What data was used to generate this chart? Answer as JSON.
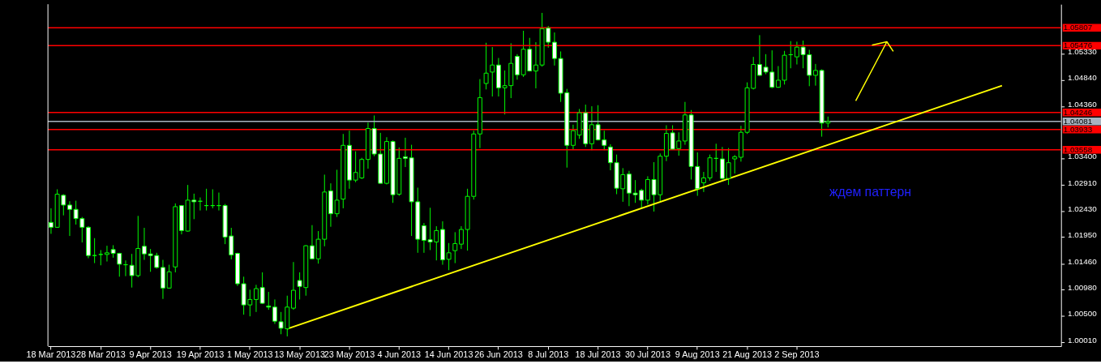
{
  "chart_data": {
    "type": "candlestick",
    "categories": [
      "18 Mar 2013",
      null,
      null,
      null,
      null,
      null,
      null,
      null,
      "28 Mar 2013",
      null,
      null,
      null,
      null,
      null,
      null,
      null,
      "9 Apr 2013",
      null,
      null,
      null,
      null,
      null,
      null,
      null,
      "19 Apr 2013",
      null,
      null,
      null,
      null,
      null,
      null,
      null,
      "1 May 2013",
      null,
      null,
      null,
      null,
      null,
      null,
      null,
      "13 May 2013",
      null,
      null,
      null,
      null,
      null,
      null,
      null,
      "23 May 2013",
      null,
      null,
      null,
      null,
      null,
      null,
      null,
      "4 Jun 2013",
      null,
      null,
      null,
      null,
      null,
      null,
      null,
      "14 Jun 2013",
      null,
      null,
      null,
      null,
      null,
      null,
      null,
      "26 Jun 2013",
      null,
      null,
      null,
      null,
      null,
      null,
      null,
      "8 Jul 2013",
      null,
      null,
      null,
      null,
      null,
      null,
      null,
      "18 Jul 2013",
      null,
      null,
      null,
      null,
      null,
      null,
      null,
      "30 Jul 2013",
      null,
      null,
      null,
      null,
      null,
      null,
      null,
      "9 Aug 2013",
      null,
      null,
      null,
      null,
      null,
      null,
      null,
      "21 Aug 2013",
      null,
      null,
      null,
      null,
      null,
      null,
      null,
      "2 Sep 2013",
      null,
      null,
      null,
      null,
      null,
      null,
      null,
      null,
      null,
      null,
      null,
      null,
      null,
      null,
      null,
      null,
      null,
      null,
      null,
      null,
      null,
      null,
      null,
      null,
      null,
      null,
      null,
      null,
      null,
      null,
      null,
      null,
      null,
      null,
      null,
      null,
      null,
      null,
      null,
      null,
      null,
      null
    ],
    "color": "#00ff00",
    "ohlc": [
      [
        1.0222,
        1.0248,
        1.0201,
        1.0213
      ],
      [
        1.0213,
        1.0283,
        1.0212,
        1.0274
      ],
      [
        1.0272,
        1.0274,
        1.0235,
        1.0254
      ],
      [
        1.0254,
        1.0261,
        1.0197,
        1.0246
      ],
      [
        1.0246,
        1.0262,
        1.0218,
        1.0229
      ],
      [
        1.0229,
        1.0232,
        1.0185,
        1.0213
      ],
      [
        1.0213,
        1.0215,
        1.0156,
        1.0161
      ],
      [
        1.0161,
        1.0193,
        1.0147,
        1.0161
      ],
      [
        1.0163,
        1.0171,
        1.0143,
        1.0163
      ],
      [
        1.0163,
        1.0179,
        1.015,
        1.0166
      ],
      [
        1.0172,
        1.018,
        1.0157,
        1.0165
      ],
      [
        1.0165,
        1.0166,
        1.0122,
        1.0145
      ],
      [
        1.0144,
        1.0152,
        1.0123,
        1.0144
      ],
      [
        1.0143,
        1.0164,
        1.0102,
        1.0124
      ],
      [
        1.0124,
        1.0234,
        1.0121,
        1.0174
      ],
      [
        1.0178,
        1.0212,
        1.0153,
        1.0164
      ],
      [
        1.0164,
        1.0173,
        1.0131,
        1.0161
      ],
      [
        1.0161,
        1.0166,
        1.0137,
        1.0139
      ],
      [
        1.0139,
        1.0153,
        1.0081,
        1.0101
      ],
      [
        1.0101,
        1.0144,
        1.01,
        1.0131
      ],
      [
        1.014,
        1.0257,
        1.013,
        1.0251
      ],
      [
        1.0253,
        1.0254,
        1.02,
        1.0207
      ],
      [
        1.0206,
        1.0291,
        1.0205,
        1.0263
      ],
      [
        1.0263,
        1.0275,
        1.0228,
        1.026
      ],
      [
        1.0261,
        1.0268,
        1.0244,
        1.0261
      ],
      [
        1.0253,
        1.0284,
        1.0244,
        1.0253
      ],
      [
        1.0253,
        1.0283,
        1.0248,
        1.0253
      ],
      [
        1.0253,
        1.0277,
        1.0244,
        1.0253
      ],
      [
        1.0253,
        1.0256,
        1.0182,
        1.0195
      ],
      [
        1.0197,
        1.0212,
        1.0154,
        1.0162
      ],
      [
        1.0165,
        1.0166,
        1.0105,
        1.0109
      ],
      [
        1.0109,
        1.0122,
        1.0052,
        1.007
      ],
      [
        1.007,
        1.0098,
        1.0049,
        1.008
      ],
      [
        1.008,
        1.0107,
        1.0057,
        1.01
      ],
      [
        1.0102,
        1.013,
        1.0072,
        1.0073
      ],
      [
        1.0068,
        1.0094,
        1.0061,
        1.0066
      ],
      [
        1.0066,
        1.008,
        1.0035,
        1.004
      ],
      [
        1.0039,
        1.0057,
        1.0016,
        1.0027
      ],
      [
        1.0026,
        1.0087,
        1.0012,
        1.0066
      ],
      [
        1.0064,
        1.0149,
        1.0061,
        1.0097
      ],
      [
        1.0115,
        1.013,
        1.008,
        1.0104
      ],
      [
        1.0102,
        1.018,
        1.0087,
        1.0179
      ],
      [
        1.0179,
        1.0217,
        1.0154,
        1.0155
      ],
      [
        1.0155,
        1.0206,
        1.0146,
        1.0191
      ],
      [
        1.0191,
        1.031,
        1.0178,
        1.0278
      ],
      [
        1.028,
        1.0294,
        1.0214,
        1.0238
      ],
      [
        1.0238,
        1.0319,
        1.0232,
        1.0263
      ],
      [
        1.0265,
        1.0385,
        1.0248,
        1.0364
      ],
      [
        1.0364,
        1.0391,
        1.0284,
        1.03
      ],
      [
        1.03,
        1.0353,
        1.0296,
        1.0314
      ],
      [
        1.0304,
        1.0341,
        1.0302,
        1.0338
      ],
      [
        1.0338,
        1.0406,
        1.0321,
        1.0395
      ],
      [
        1.0395,
        1.0419,
        1.0344,
        1.0348
      ],
      [
        1.0348,
        1.0387,
        1.0294,
        1.0294
      ],
      [
        1.0294,
        1.0379,
        1.0292,
        1.0371
      ],
      [
        1.0371,
        1.0373,
        1.0258,
        1.0273
      ],
      [
        1.0274,
        1.036,
        1.0271,
        1.034
      ],
      [
        1.0343,
        1.0378,
        1.0324,
        1.034
      ],
      [
        1.0341,
        1.0365,
        1.0197,
        1.026
      ],
      [
        1.026,
        1.0286,
        1.0166,
        1.0191
      ],
      [
        1.0216,
        1.0221,
        1.0166,
        1.0189
      ],
      [
        1.019,
        1.0249,
        1.0171,
        1.0186
      ],
      [
        1.0186,
        1.0215,
        1.0152,
        1.0207
      ],
      [
        1.0209,
        1.0224,
        1.0144,
        1.0153
      ],
      [
        1.0154,
        1.0184,
        1.0134,
        1.0166
      ],
      [
        1.017,
        1.0204,
        1.0147,
        1.0183
      ],
      [
        1.0182,
        1.0215,
        1.0173,
        1.0209
      ],
      [
        1.0209,
        1.0284,
        1.017,
        1.027
      ],
      [
        1.027,
        1.0391,
        1.0264,
        1.0385
      ],
      [
        1.0385,
        1.0486,
        1.0359,
        1.0452
      ],
      [
        1.0478,
        1.0553,
        1.0467,
        1.0497
      ],
      [
        1.0499,
        1.0545,
        1.0454,
        1.0512
      ],
      [
        1.0512,
        1.0525,
        1.0454,
        1.047
      ],
      [
        1.047,
        1.0502,
        1.0421,
        1.0474
      ],
      [
        1.0474,
        1.0552,
        1.0451,
        1.0515
      ],
      [
        1.0528,
        1.0532,
        1.0485,
        1.0494
      ],
      [
        1.0494,
        1.0575,
        1.049,
        1.0541
      ],
      [
        1.0541,
        1.0562,
        1.05,
        1.0501
      ],
      [
        1.0501,
        1.0554,
        1.0469,
        1.0512
      ],
      [
        1.0512,
        1.0608,
        1.0509,
        1.0579
      ],
      [
        1.058,
        1.0584,
        1.0544,
        1.0554
      ],
      [
        1.0554,
        1.0572,
        1.0511,
        1.0524
      ],
      [
        1.0524,
        1.0537,
        1.0444,
        1.046
      ],
      [
        1.0461,
        1.0468,
        1.0323,
        1.0364
      ],
      [
        1.0364,
        1.0402,
        1.0356,
        1.0391
      ],
      [
        1.0383,
        1.0431,
        1.0376,
        1.0424
      ],
      [
        1.0424,
        1.0439,
        1.0361,
        1.0367
      ],
      [
        1.0367,
        1.0436,
        1.0355,
        1.0402
      ],
      [
        1.0402,
        1.0438,
        1.0373,
        1.0374
      ],
      [
        1.0374,
        1.0391,
        1.0355,
        1.0364
      ],
      [
        1.0361,
        1.0366,
        1.0318,
        1.0332
      ],
      [
        1.0332,
        1.0347,
        1.0274,
        1.0285
      ],
      [
        1.0284,
        1.0322,
        1.026,
        1.031
      ],
      [
        1.0311,
        1.0317,
        1.0252,
        1.0276
      ],
      [
        1.0276,
        1.03,
        1.0258,
        1.0273
      ],
      [
        1.0281,
        1.0284,
        1.0248,
        1.0263
      ],
      [
        1.0263,
        1.0307,
        1.0255,
        1.0301
      ],
      [
        1.0301,
        1.0333,
        1.0242,
        1.0273
      ],
      [
        1.0273,
        1.0349,
        1.0261,
        1.0344
      ],
      [
        1.0344,
        1.0401,
        1.0335,
        1.0386
      ],
      [
        1.0387,
        1.0401,
        1.0356,
        1.0357
      ],
      [
        1.0358,
        1.0388,
        1.0345,
        1.0372
      ],
      [
        1.0372,
        1.0444,
        1.0365,
        1.042
      ],
      [
        1.042,
        1.0429,
        1.0301,
        1.0325
      ],
      [
        1.0325,
        1.0351,
        1.0271,
        1.0284
      ],
      [
        1.0295,
        1.0315,
        1.0278,
        1.0304
      ],
      [
        1.0304,
        1.0347,
        1.0299,
        1.0341
      ],
      [
        1.034,
        1.0367,
        1.0315,
        1.034
      ],
      [
        1.0339,
        1.0361,
        1.0301,
        1.0303
      ],
      [
        1.0303,
        1.0359,
        1.0291,
        1.0332
      ],
      [
        1.0339,
        1.0346,
        1.0312,
        1.0343
      ],
      [
        1.0342,
        1.04,
        1.0334,
        1.0388
      ],
      [
        1.0388,
        1.048,
        1.0385,
        1.047
      ],
      [
        1.0469,
        1.0527,
        1.0467,
        1.0513
      ],
      [
        1.0513,
        1.0567,
        1.0492,
        1.0493
      ],
      [
        1.0508,
        1.0532,
        1.0495,
        1.0499
      ],
      [
        1.0499,
        1.0539,
        1.0469,
        1.0471
      ],
      [
        1.0471,
        1.051,
        1.047,
        1.0484
      ],
      [
        1.0484,
        1.0538,
        1.0476,
        1.053
      ],
      [
        1.0531,
        1.0556,
        1.0506,
        1.0531
      ],
      [
        1.0527,
        1.0555,
        1.0513,
        1.0545
      ],
      [
        1.0545,
        1.0557,
        1.0506,
        1.0531
      ],
      [
        1.0531,
        1.054,
        1.0473,
        1.0493
      ],
      [
        1.0493,
        1.0514,
        1.0474,
        1.0502
      ],
      [
        1.0502,
        1.0504,
        1.038,
        1.0405
      ],
      [
        1.0405,
        1.0417,
        1.0397,
        1.0408
      ],
      null,
      null,
      null,
      null,
      null,
      null,
      null,
      null,
      null,
      null,
      null,
      null,
      null,
      null,
      null,
      null,
      null,
      null,
      null,
      null,
      null,
      null,
      null,
      null,
      null,
      null,
      null,
      null,
      null,
      null,
      null,
      null,
      null,
      null,
      null,
      null,
      null
    ],
    "series": [
      {
        "type": "line",
        "color": "#ffff00",
        "values": [
          null,
          null,
          null,
          null,
          null,
          null,
          null,
          null,
          null,
          null,
          null,
          null,
          null,
          null,
          null,
          null,
          null,
          null,
          null,
          null,
          null,
          null,
          null,
          null,
          null,
          null,
          null,
          null,
          null,
          null,
          null,
          null,
          null,
          null,
          null,
          null,
          null,
          null,
          1.0026,
          null,
          null,
          null,
          null,
          null,
          null,
          null,
          null,
          null,
          null,
          null,
          null,
          null,
          null,
          null,
          null,
          null,
          null,
          null,
          null,
          null,
          null,
          null,
          null,
          null,
          null,
          null,
          null,
          null,
          null,
          null,
          null,
          null,
          null,
          null,
          null,
          null,
          null,
          null,
          null,
          null,
          null,
          null,
          null,
          null,
          null,
          null,
          null,
          null,
          null,
          null,
          null,
          null,
          null,
          null,
          null,
          null,
          null,
          null,
          null,
          null,
          null,
          null,
          null,
          null,
          null,
          null,
          null,
          null,
          null,
          null,
          null,
          null,
          null,
          null,
          null,
          null,
          null,
          null,
          null,
          null,
          null,
          null,
          null,
          null,
          null,
          null,
          null,
          null,
          null,
          null,
          null,
          null,
          null,
          null,
          null,
          null,
          null,
          null,
          null,
          null,
          null,
          null,
          null,
          null,
          null,
          null,
          null,
          null,
          null,
          null,
          null,
          null,
          null,
          1.0474,
          null,
          null,
          null,
          null,
          null,
          null,
          null,
          null,
          null
        ]
      }
    ],
    "ylim": [
      0.9994,
      1.0624
    ],
    "yticks": [
      {
        "value": 1.0001,
        "label": "1.00010"
      },
      {
        "value": 1.005,
        "label": "1.00500"
      },
      {
        "value": 1.0098,
        "label": "1.00980"
      },
      {
        "value": 1.0146,
        "label": "1.01460"
      },
      {
        "value": 1.0195,
        "label": "1.01950"
      },
      {
        "value": 1.0243,
        "label": "1.02430"
      },
      {
        "value": 1.0291,
        "label": "1.02910"
      },
      {
        "value": 1.034,
        "label": "1.03400"
      },
      {
        "value": 1.0436,
        "label": "1.04360"
      },
      {
        "value": 1.0484,
        "label": "1.04840"
      },
      {
        "value": 1.0533,
        "label": "1.05330"
      }
    ],
    "ref_lines": [
      {
        "axis": "y",
        "value": 1.05807,
        "label": "1.05807",
        "color": "#ff0000"
      },
      {
        "axis": "y",
        "value": 1.05476,
        "label": "1.05476",
        "color": "#ff0000"
      },
      {
        "axis": "y",
        "value": 1.04246,
        "label": "1.04246",
        "color": "#ff0000"
      },
      {
        "axis": "y",
        "value": 1.04081,
        "label": "1.04081",
        "color": "#a8b4c0"
      },
      {
        "axis": "y",
        "value": 1.03933,
        "label": "1.03933",
        "color": "#ff0000"
      },
      {
        "axis": "y",
        "value": 1.03558,
        "label": "1.03558",
        "color": "#ff0000"
      }
    ],
    "annotations": [
      "ждем паттерн"
    ],
    "grid": false
  }
}
